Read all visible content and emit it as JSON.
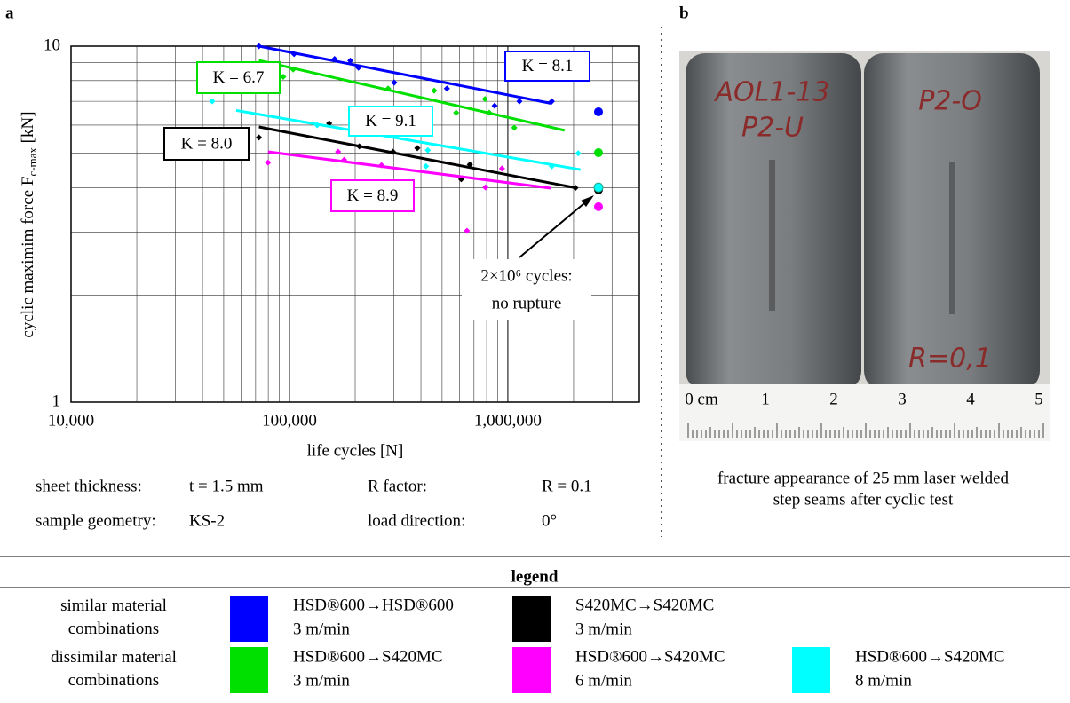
{
  "chart_data": {
    "type": "scatter",
    "panel_label": "a",
    "xlabel": "life cycles [N]",
    "ylabel": "cyclic maximim force F",
    "ylabel_sub": "c-max",
    "ylabel_unit": " [kN]",
    "log_x": true,
    "log_y": true,
    "grid": true,
    "xlim": [
      10000,
      4000000
    ],
    "ylim": [
      1,
      10
    ],
    "xticks": [
      {
        "value": 10000,
        "label": "10,000"
      },
      {
        "value": 100000,
        "label": "100,000"
      },
      {
        "value": 1000000,
        "label": "1,000,000"
      }
    ],
    "yticks": [
      1,
      10
    ],
    "xgrid_minor": [
      20000,
      30000,
      40000,
      50000,
      60000,
      70000,
      80000,
      90000,
      200000,
      300000,
      400000,
      500000,
      600000,
      700000,
      800000,
      900000,
      2000000,
      3000000
    ],
    "ygrid_minor": [
      2,
      3,
      4,
      5,
      6,
      7,
      8,
      9
    ],
    "runout_x": 2600000,
    "annotation": [
      "2×10⁶  cycles:",
      "no rupture"
    ],
    "series": [
      {
        "name": "HSD®600→HSD®600",
        "speed": "3 m/min",
        "color": "#0000ff",
        "k_label": "K = 8.1",
        "x": [
          72500,
          105000,
          161000,
          190000,
          207000,
          302000,
          526000,
          870000,
          1130000,
          1590000
        ],
        "values": [
          10.0,
          9.5,
          9.2,
          9.1,
          8.7,
          7.9,
          7.6,
          6.8,
          7.0,
          7.0
        ],
        "fit_x": [
          72500,
          1590000
        ],
        "fit_y": [
          10.0,
          6.9
        ],
        "runout": 6.54
      },
      {
        "name": "S420MC→S420MC",
        "speed": "3 m/min",
        "color": "#000000",
        "k_label": "K = 8.0",
        "x": [
          72500,
          152000,
          209000,
          298000,
          385000,
          612000,
          670000,
          2040000
        ],
        "values": [
          5.54,
          6.07,
          5.23,
          5.05,
          5.17,
          4.23,
          4.65,
          4.0
        ],
        "fit_x": [
          72500,
          2040000
        ],
        "fit_y": [
          5.93,
          4.0
        ],
        "runout": 3.95
      },
      {
        "name": "HSD®600→S420MC",
        "speed": "3 m/min",
        "color": "#00e000",
        "k_label": "K = 6.7",
        "x": [
          93700,
          104000,
          283000,
          460000,
          580000,
          786000,
          822000,
          1070000
        ],
        "values": [
          8.2,
          8.6,
          7.6,
          7.5,
          6.5,
          7.1,
          6.5,
          5.9
        ],
        "fit_x": [
          72500,
          1820000
        ],
        "fit_y": [
          9.12,
          5.8
        ],
        "runout": 5.02
      },
      {
        "name": "HSD®600→S420MC",
        "speed": "6 m/min",
        "color": "#ff00ff",
        "k_label": "K = 8.9",
        "x": [
          79800,
          167000,
          178000,
          264000,
          650000,
          790000,
          940000
        ],
        "values": [
          4.71,
          5.05,
          4.79,
          4.63,
          3.03,
          4.01,
          4.53
        ],
        "fit_x": [
          79800,
          1570000
        ],
        "fit_y": [
          5.05,
          3.99
        ],
        "runout": 3.54
      },
      {
        "name": "HSD®600→S420MC",
        "speed": "8 m/min",
        "color": "#00ffff",
        "k_label": "K = 9.1",
        "x": [
          44300,
          134000,
          422000,
          430000,
          1590000,
          2100000
        ],
        "values": [
          7.0,
          6.0,
          4.6,
          5.1,
          4.6,
          5.0
        ],
        "fit_x": [
          57000,
          2150000
        ],
        "fit_y": [
          6.6,
          4.5
        ],
        "runout": 4.01
      }
    ]
  },
  "parameters": [
    [
      "sheet thickness:",
      "t = 1.5 mm",
      "R factor:",
      "R = 0.1"
    ],
    [
      "sample geometry:",
      "KS-2",
      "load direction:",
      "0°"
    ]
  ],
  "panel_b": {
    "label": "b",
    "caption": [
      "fracture appearance of 25 mm laser welded",
      "step seams after cyclic test"
    ],
    "ruler_labels": [
      "0 cm",
      "1",
      "2",
      "3",
      "4",
      "5"
    ],
    "handwriting": [
      "AOL1-13",
      "P2-U",
      "P2-O",
      "R=0,1"
    ]
  },
  "legend": {
    "title": "legend",
    "rows": [
      "similar material combinations",
      "dissimilar material combinations"
    ]
  }
}
